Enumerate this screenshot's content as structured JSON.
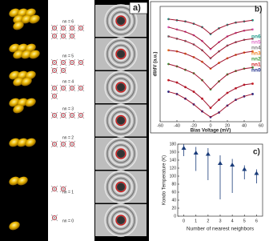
{
  "panel_a": {
    "label": "a)",
    "rows": [
      "nn = 6",
      "nn = 5",
      "nn = 4",
      "nn = 3",
      "nn = 2",
      "nn = 1",
      "nn = 0"
    ]
  },
  "chart_data": [
    {
      "type": "line",
      "panel_label": "b)",
      "x_label": "Bias Voltage (mV)",
      "y_label": "dI/dV (a.u.)",
      "x": [
        -50,
        -40,
        -30,
        -20,
        -10,
        0,
        10,
        20,
        30,
        40,
        50
      ],
      "xlim": [
        -60,
        60
      ],
      "xticks": [
        -60,
        -40,
        -20,
        0,
        20,
        40,
        60
      ],
      "ylim": [
        0,
        10
      ],
      "fit_color": "#a0102c",
      "legend": "upper right",
      "series": [
        {
          "name": "nn6",
          "color": "#1f9a8a",
          "values": [
            8.9,
            8.8,
            8.7,
            8.5,
            8.2,
            7.6,
            8.1,
            8.4,
            8.6,
            8.7,
            8.8
          ]
        },
        {
          "name": "nn5",
          "color": "#e070c8",
          "values": [
            8.2,
            8.0,
            7.8,
            7.5,
            7.0,
            6.3,
            6.9,
            7.4,
            7.7,
            7.9,
            8.0
          ]
        },
        {
          "name": "nn4",
          "color": "#808080",
          "values": [
            7.4,
            7.2,
            7.0,
            6.7,
            6.2,
            5.5,
            6.1,
            6.6,
            6.9,
            7.1,
            7.2
          ]
        },
        {
          "name": "nn3",
          "color": "#f08020",
          "values": [
            6.2,
            6.1,
            5.9,
            5.6,
            5.2,
            4.6,
            5.1,
            5.5,
            5.8,
            6.0,
            6.1
          ]
        },
        {
          "name": "nn2",
          "color": "#3a9a3a",
          "values": [
            5.0,
            4.8,
            4.5,
            4.2,
            3.6,
            2.8,
            3.5,
            4.1,
            4.4,
            4.6,
            4.7
          ]
        },
        {
          "name": "nn1",
          "color": "#d02020",
          "values": [
            3.6,
            3.4,
            3.0,
            2.6,
            2.0,
            1.2,
            1.9,
            2.5,
            2.9,
            3.2,
            3.3
          ]
        },
        {
          "name": "nn0",
          "color": "#1a2a8a",
          "values": [
            2.6,
            2.4,
            2.0,
            1.5,
            0.9,
            0.4,
            0.8,
            1.4,
            1.9,
            2.2,
            2.4
          ]
        }
      ]
    },
    {
      "type": "errorbar",
      "panel_label": "c)",
      "x_label": "Number of nearest neighbors",
      "y_label": "Kondo Temperature (K)",
      "x": [
        0,
        1,
        2,
        3,
        4,
        5,
        6
      ],
      "values": [
        170,
        158,
        155,
        132,
        128,
        117,
        107
      ],
      "error_minus": [
        20,
        45,
        65,
        90,
        70,
        25,
        25
      ],
      "error_plus": [
        10,
        15,
        15,
        20,
        15,
        10,
        10
      ],
      "color": "#1a3c7a",
      "xlim": [
        -0.5,
        6.5
      ],
      "xticks": [
        0,
        1,
        2,
        3,
        4,
        5,
        6
      ],
      "ylim": [
        0,
        180
      ],
      "yticks": [
        0,
        20,
        40,
        60,
        80,
        100,
        120,
        140,
        160,
        180
      ]
    }
  ]
}
